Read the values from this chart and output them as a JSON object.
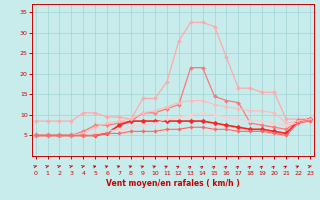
{
  "x": [
    0,
    1,
    2,
    3,
    4,
    5,
    6,
    7,
    8,
    9,
    10,
    11,
    12,
    13,
    14,
    15,
    16,
    17,
    18,
    19,
    20,
    21,
    22,
    23
  ],
  "series": [
    {
      "color": "#ffaaaa",
      "linewidth": 0.9,
      "markersize": 2.0,
      "values": [
        8.5,
        8.5,
        8.5,
        8.5,
        10.5,
        10.5,
        9.5,
        9.5,
        9.0,
        14.0,
        14.0,
        18.0,
        28.0,
        32.5,
        32.5,
        31.5,
        24.0,
        16.5,
        16.5,
        15.5,
        15.5,
        9.0,
        9.0,
        9.0
      ]
    },
    {
      "color": "#ff7777",
      "linewidth": 0.9,
      "markersize": 2.0,
      "values": [
        5.0,
        5.0,
        5.0,
        5.0,
        6.0,
        7.5,
        7.5,
        8.0,
        8.5,
        10.5,
        10.5,
        11.5,
        12.5,
        21.5,
        21.5,
        14.5,
        13.5,
        13.0,
        8.0,
        7.5,
        7.0,
        6.5,
        8.5,
        8.5
      ]
    },
    {
      "color": "#ff2222",
      "linewidth": 1.2,
      "markersize": 2.5,
      "values": [
        5.0,
        5.0,
        5.0,
        5.0,
        5.0,
        5.0,
        5.5,
        7.5,
        8.5,
        8.5,
        8.5,
        8.5,
        8.5,
        8.5,
        8.5,
        8.0,
        7.5,
        7.0,
        6.5,
        6.5,
        6.0,
        5.5,
        8.5,
        9.0
      ]
    },
    {
      "color": "#ffbbbb",
      "linewidth": 0.8,
      "markersize": 1.8,
      "values": [
        5.0,
        5.0,
        5.0,
        5.0,
        5.5,
        7.0,
        8.0,
        8.5,
        9.0,
        10.5,
        11.0,
        12.0,
        13.0,
        13.5,
        13.5,
        12.5,
        12.0,
        11.5,
        11.0,
        11.0,
        10.5,
        8.0,
        8.5,
        9.0
      ]
    },
    {
      "color": "#ffcccc",
      "linewidth": 0.8,
      "markersize": 1.8,
      "values": [
        5.0,
        5.0,
        5.0,
        5.0,
        5.0,
        5.5,
        6.0,
        6.5,
        7.0,
        7.5,
        8.0,
        9.0,
        9.5,
        10.0,
        10.5,
        10.0,
        9.5,
        9.0,
        8.5,
        8.5,
        8.0,
        7.5,
        8.0,
        8.5
      ]
    },
    {
      "color": "#ff6666",
      "linewidth": 0.8,
      "markersize": 1.8,
      "values": [
        5.0,
        5.0,
        5.0,
        5.0,
        5.0,
        5.0,
        5.5,
        5.5,
        6.0,
        6.0,
        6.0,
        6.5,
        6.5,
        7.0,
        7.0,
        6.5,
        6.5,
        6.0,
        6.0,
        6.0,
        5.5,
        5.0,
        8.0,
        8.5
      ]
    }
  ],
  "xlabel": "Vent moyen/en rafales ( km/h )",
  "xlim": [
    -0.3,
    23.3
  ],
  "ylim": [
    0,
    37
  ],
  "yticks": [
    5,
    10,
    15,
    20,
    25,
    30,
    35
  ],
  "xticks": [
    0,
    1,
    2,
    3,
    4,
    5,
    6,
    7,
    8,
    9,
    10,
    11,
    12,
    13,
    14,
    15,
    16,
    17,
    18,
    19,
    20,
    21,
    22,
    23
  ],
  "bg_color": "#c8ecec",
  "grid_color": "#a0d4d4",
  "tick_color": "#cc0000",
  "label_color": "#cc0000",
  "spine_color": "#cc0000",
  "arrow_angles": [
    -50,
    -50,
    -50,
    -50,
    -50,
    -45,
    -45,
    -45,
    -45,
    -40,
    -40,
    -35,
    -30,
    -20,
    -20,
    -20,
    -20,
    -20,
    -20,
    -20,
    -20,
    -30,
    -40,
    -50
  ]
}
